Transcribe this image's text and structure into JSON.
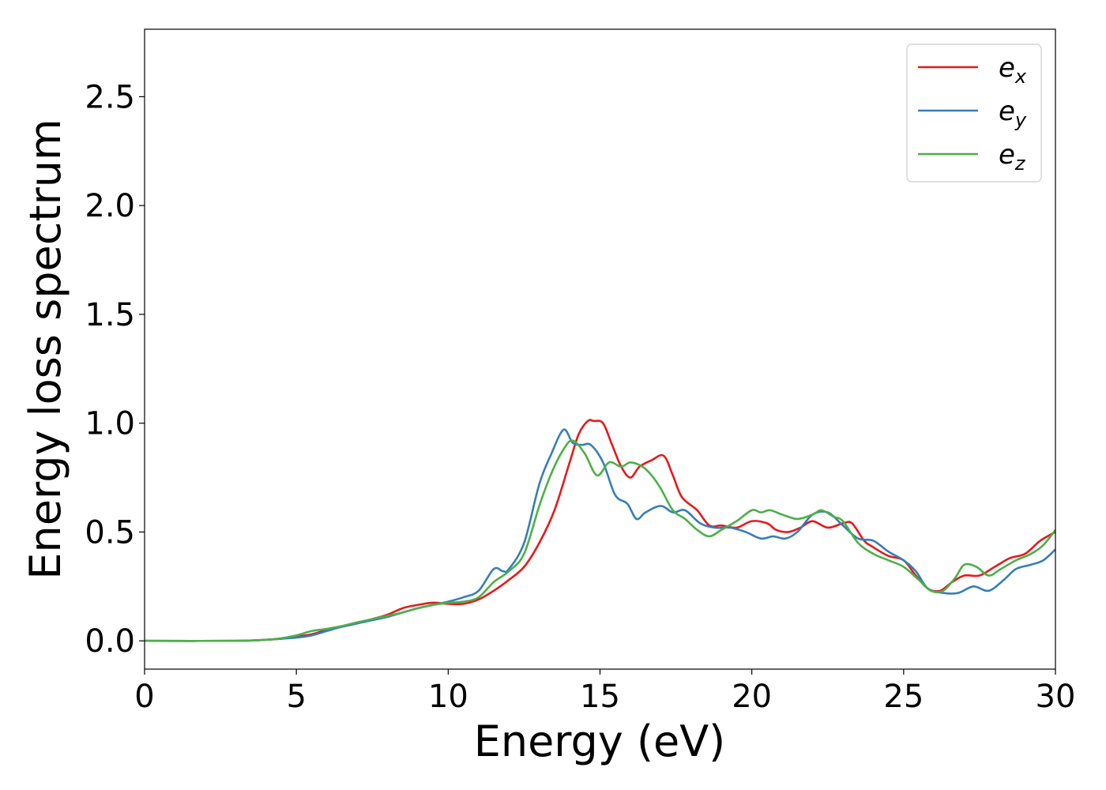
{
  "chart_data": {
    "type": "line",
    "xlabel": "Energy (eV)",
    "ylabel": "Energy loss spectrum",
    "xlim": [
      0,
      30
    ],
    "ylim": [
      -0.13,
      2.81
    ],
    "xticks": [
      "0",
      "5",
      "10",
      "15",
      "20",
      "25",
      "30"
    ],
    "yticks": [
      "0.0",
      "0.5",
      "1.0",
      "1.5",
      "2.0",
      "2.5"
    ],
    "grid": false,
    "legend_position": "top-right",
    "series": [
      {
        "name": "e_x",
        "label_main": "e",
        "label_sub": "x",
        "color": "#e41a1c",
        "points": [
          [
            0,
            0
          ],
          [
            3,
            0
          ],
          [
            4,
            0.005
          ],
          [
            4.5,
            0.01
          ],
          [
            5,
            0.02
          ],
          [
            5.5,
            0.03
          ],
          [
            6,
            0.05
          ],
          [
            6.5,
            0.065
          ],
          [
            7,
            0.08
          ],
          [
            7.5,
            0.1
          ],
          [
            8,
            0.12
          ],
          [
            8.5,
            0.15
          ],
          [
            9,
            0.165
          ],
          [
            9.5,
            0.175
          ],
          [
            10,
            0.17
          ],
          [
            10.5,
            0.17
          ],
          [
            11,
            0.19
          ],
          [
            11.5,
            0.23
          ],
          [
            12,
            0.28
          ],
          [
            12.5,
            0.34
          ],
          [
            13,
            0.45
          ],
          [
            13.5,
            0.6
          ],
          [
            14,
            0.82
          ],
          [
            14.3,
            0.95
          ],
          [
            14.6,
            1.01
          ],
          [
            14.8,
            1.01
          ],
          [
            15.1,
            1.0
          ],
          [
            15.4,
            0.9
          ],
          [
            15.7,
            0.8
          ],
          [
            16,
            0.75
          ],
          [
            16.3,
            0.8
          ],
          [
            16.7,
            0.83
          ],
          [
            17.1,
            0.85
          ],
          [
            17.4,
            0.76
          ],
          [
            17.7,
            0.66
          ],
          [
            18.2,
            0.6
          ],
          [
            18.6,
            0.53
          ],
          [
            19,
            0.53
          ],
          [
            19.5,
            0.52
          ],
          [
            20,
            0.55
          ],
          [
            20.5,
            0.54
          ],
          [
            20.8,
            0.51
          ],
          [
            21.2,
            0.5
          ],
          [
            21.6,
            0.52
          ],
          [
            22,
            0.55
          ],
          [
            22.5,
            0.52
          ],
          [
            23,
            0.54
          ],
          [
            23.3,
            0.54
          ],
          [
            23.7,
            0.46
          ],
          [
            24,
            0.43
          ],
          [
            24.5,
            0.39
          ],
          [
            25,
            0.37
          ],
          [
            25.4,
            0.3
          ],
          [
            25.8,
            0.24
          ],
          [
            26.2,
            0.23
          ],
          [
            26.6,
            0.27
          ],
          [
            27,
            0.3
          ],
          [
            27.5,
            0.3
          ],
          [
            28,
            0.34
          ],
          [
            28.5,
            0.38
          ],
          [
            29,
            0.4
          ],
          [
            29.5,
            0.46
          ],
          [
            30,
            0.5
          ]
        ]
      },
      {
        "name": "e_y",
        "label_main": "e",
        "label_sub": "y",
        "color": "#377eb8",
        "points": [
          [
            0,
            0
          ],
          [
            3,
            0
          ],
          [
            4,
            0.005
          ],
          [
            4.5,
            0.01
          ],
          [
            5,
            0.015
          ],
          [
            5.5,
            0.025
          ],
          [
            6,
            0.045
          ],
          [
            6.5,
            0.065
          ],
          [
            7,
            0.08
          ],
          [
            7.5,
            0.095
          ],
          [
            8,
            0.11
          ],
          [
            8.5,
            0.13
          ],
          [
            9,
            0.15
          ],
          [
            9.5,
            0.165
          ],
          [
            10,
            0.18
          ],
          [
            10.5,
            0.2
          ],
          [
            11,
            0.23
          ],
          [
            11.5,
            0.33
          ],
          [
            11.8,
            0.32
          ],
          [
            12,
            0.33
          ],
          [
            12.5,
            0.45
          ],
          [
            13,
            0.72
          ],
          [
            13.4,
            0.86
          ],
          [
            13.8,
            0.97
          ],
          [
            14.1,
            0.91
          ],
          [
            14.4,
            0.9
          ],
          [
            14.7,
            0.9
          ],
          [
            15.1,
            0.82
          ],
          [
            15.5,
            0.67
          ],
          [
            15.9,
            0.63
          ],
          [
            16.2,
            0.56
          ],
          [
            16.5,
            0.59
          ],
          [
            17,
            0.62
          ],
          [
            17.4,
            0.59
          ],
          [
            17.8,
            0.6
          ],
          [
            18.3,
            0.54
          ],
          [
            18.8,
            0.52
          ],
          [
            19.3,
            0.52
          ],
          [
            19.8,
            0.5
          ],
          [
            20.3,
            0.47
          ],
          [
            20.7,
            0.48
          ],
          [
            21.1,
            0.47
          ],
          [
            21.5,
            0.5
          ],
          [
            22,
            0.58
          ],
          [
            22.5,
            0.59
          ],
          [
            23,
            0.53
          ],
          [
            23.5,
            0.47
          ],
          [
            24,
            0.46
          ],
          [
            24.5,
            0.41
          ],
          [
            25,
            0.37
          ],
          [
            25.4,
            0.32
          ],
          [
            25.8,
            0.24
          ],
          [
            26.3,
            0.22
          ],
          [
            26.8,
            0.22
          ],
          [
            27.3,
            0.25
          ],
          [
            27.8,
            0.23
          ],
          [
            28.3,
            0.28
          ],
          [
            28.7,
            0.33
          ],
          [
            29.2,
            0.35
          ],
          [
            29.6,
            0.37
          ],
          [
            30,
            0.42
          ]
        ]
      },
      {
        "name": "e_z",
        "label_main": "e",
        "label_sub": "z",
        "color": "#4daf4a",
        "points": [
          [
            0,
            0
          ],
          [
            3,
            0
          ],
          [
            4,
            0.005
          ],
          [
            4.5,
            0.012
          ],
          [
            5,
            0.025
          ],
          [
            5.5,
            0.045
          ],
          [
            6,
            0.055
          ],
          [
            6.5,
            0.068
          ],
          [
            7,
            0.085
          ],
          [
            7.5,
            0.1
          ],
          [
            8,
            0.115
          ],
          [
            8.5,
            0.13
          ],
          [
            9,
            0.15
          ],
          [
            9.5,
            0.165
          ],
          [
            10,
            0.175
          ],
          [
            10.5,
            0.18
          ],
          [
            11,
            0.2
          ],
          [
            11.5,
            0.27
          ],
          [
            12,
            0.32
          ],
          [
            12.5,
            0.4
          ],
          [
            13,
            0.62
          ],
          [
            13.4,
            0.77
          ],
          [
            13.8,
            0.88
          ],
          [
            14.1,
            0.92
          ],
          [
            14.5,
            0.86
          ],
          [
            14.9,
            0.76
          ],
          [
            15.3,
            0.82
          ],
          [
            15.7,
            0.8
          ],
          [
            16,
            0.82
          ],
          [
            16.4,
            0.8
          ],
          [
            16.7,
            0.76
          ],
          [
            17,
            0.7
          ],
          [
            17.4,
            0.6
          ],
          [
            17.8,
            0.56
          ],
          [
            18.2,
            0.51
          ],
          [
            18.6,
            0.48
          ],
          [
            19,
            0.51
          ],
          [
            19.5,
            0.55
          ],
          [
            20,
            0.6
          ],
          [
            20.3,
            0.59
          ],
          [
            20.6,
            0.6
          ],
          [
            21,
            0.58
          ],
          [
            21.5,
            0.56
          ],
          [
            22,
            0.58
          ],
          [
            22.3,
            0.6
          ],
          [
            22.7,
            0.57
          ],
          [
            23,
            0.55
          ],
          [
            23.5,
            0.45
          ],
          [
            24,
            0.4
          ],
          [
            24.5,
            0.37
          ],
          [
            25,
            0.34
          ],
          [
            25.5,
            0.28
          ],
          [
            25.9,
            0.23
          ],
          [
            26.3,
            0.23
          ],
          [
            26.7,
            0.29
          ],
          [
            27,
            0.35
          ],
          [
            27.4,
            0.34
          ],
          [
            27.8,
            0.3
          ],
          [
            28.2,
            0.33
          ],
          [
            28.7,
            0.37
          ],
          [
            29.2,
            0.4
          ],
          [
            29.6,
            0.44
          ],
          [
            30,
            0.51
          ]
        ]
      }
    ]
  }
}
